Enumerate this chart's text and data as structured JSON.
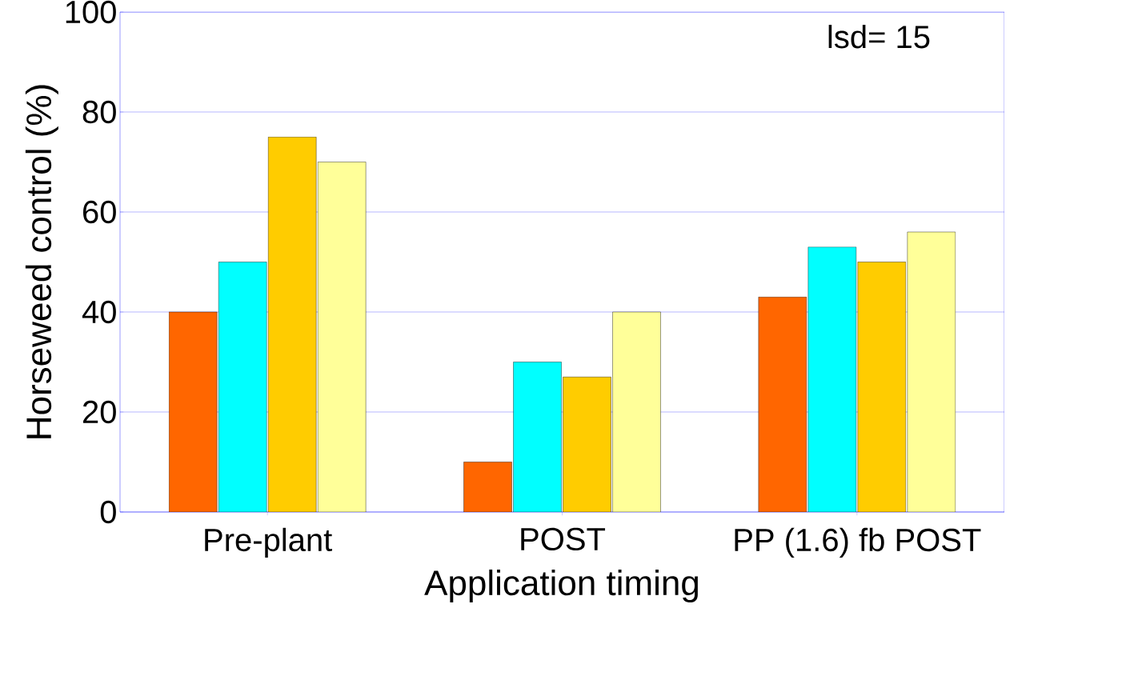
{
  "chart_data": {
    "type": "bar",
    "xlabel": "Application timing",
    "ylabel": "Horseweed control (%)",
    "categories": [
      "Pre-plant",
      "POST",
      "PP (1.6) fb POST"
    ],
    "series": [
      {
        "color": "#ff6600",
        "values": [
          40,
          10,
          43
        ]
      },
      {
        "color": "#00ffff",
        "values": [
          50,
          30,
          53
        ]
      },
      {
        "color": "#ffcc00",
        "values": [
          75,
          27,
          50
        ]
      },
      {
        "color": "#ffff99",
        "values": [
          70,
          40,
          56
        ]
      }
    ],
    "ylim": [
      0,
      100
    ],
    "yticks": [
      0,
      20,
      40,
      60,
      80,
      100
    ],
    "grid": "y",
    "annotations": [
      "lsd= 15"
    ]
  }
}
